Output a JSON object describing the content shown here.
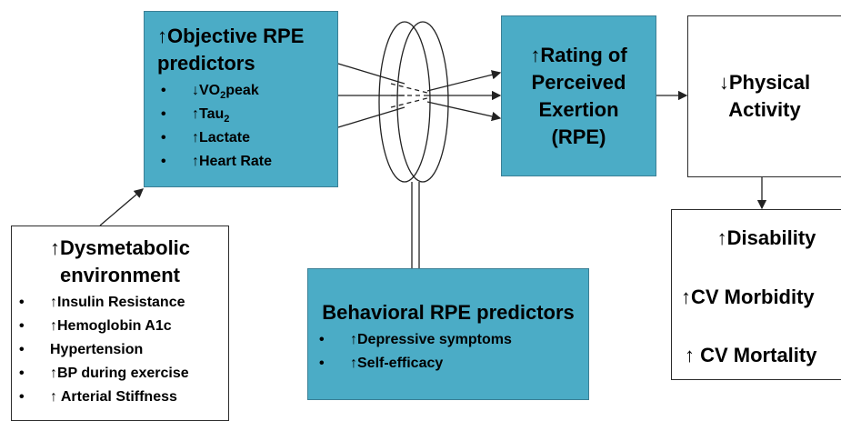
{
  "objective": {
    "title": [
      "↑Objective RPE",
      "predictors"
    ],
    "items": [
      {
        "pre": "↓VO",
        "sub": "2",
        "post": "peak"
      },
      {
        "pre": "↑Tau",
        "sub": "2",
        "post": ""
      },
      {
        "pre": "↑Lactate"
      },
      {
        "pre": "↑Heart Rate"
      }
    ]
  },
  "rating": {
    "title": [
      "↑Rating of",
      "Perceived",
      "Exertion",
      "(RPE)"
    ]
  },
  "activity": {
    "title": [
      "↓Physical",
      "Activity"
    ]
  },
  "outcomes": {
    "items": [
      "↑Disability",
      "↑CV Morbidity",
      "↑ CV Mortality"
    ]
  },
  "dysmetabolic": {
    "title": [
      "↑Dysmetabolic",
      "environment"
    ],
    "items": [
      "↑Insulin Resistance",
      "↑Hemoglobin A1c",
      "Hypertension",
      "↑BP during exercise",
      "↑ Arterial Stiffness"
    ]
  },
  "behavioral": {
    "title": "Behavioral RPE predictors",
    "items": [
      "↑Depressive symptoms",
      "↑Self-efficacy"
    ]
  }
}
